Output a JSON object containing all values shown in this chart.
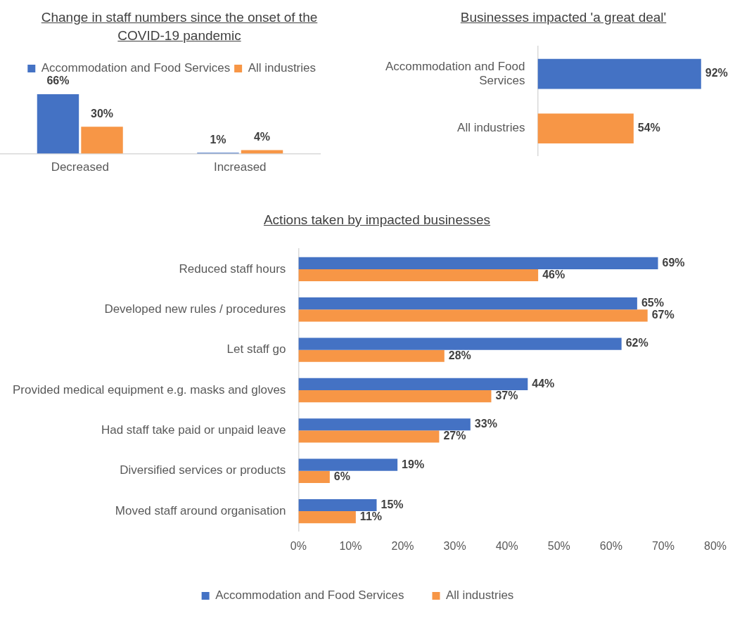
{
  "chart_data": [
    {
      "type": "bar",
      "title": "Change in staff numbers since the onset of the COVID-19 pandemic",
      "categories": [
        "Decreased",
        "Increased"
      ],
      "series": [
        {
          "name": "Accommodation and Food Services",
          "color": "#4472c4",
          "values": [
            66,
            1
          ],
          "value_labels": [
            "66%",
            "1%"
          ]
        },
        {
          "name": "All industries",
          "color": "#f79646",
          "values": [
            30,
            4
          ],
          "value_labels": [
            "30%",
            "4%"
          ]
        }
      ],
      "legend": "top right",
      "tick_labels": "x"
    },
    {
      "type": "bar",
      "title": "Businesses impacted 'a great deal'",
      "orientation": "horizontal",
      "categories": [
        "Accommodation and Food Services",
        "All industries"
      ],
      "values": [
        92,
        54
      ],
      "colors": [
        "#4472c4",
        "#f79646"
      ],
      "value_labels": [
        "92%",
        "54%"
      ],
      "tick_labels": "y"
    },
    {
      "type": "bar",
      "title": "Actions taken by impacted businesses",
      "orientation": "horizontal",
      "categories": [
        "Reduced staff hours",
        "Developed new rules / procedures",
        "Let staff go",
        "Provided medical equipment e.g. masks and gloves",
        "Had staff take paid or unpaid leave",
        "Diversified services or products",
        "Moved staff around organisation"
      ],
      "series": [
        {
          "name": "Accommodation and Food Services",
          "color": "#4472c4",
          "values": [
            69,
            65,
            62,
            44,
            33,
            19,
            15
          ],
          "value_labels": [
            "69%",
            "65%",
            "62%",
            "44%",
            "33%",
            "19%",
            "15%"
          ]
        },
        {
          "name": "All industries",
          "color": "#f79646",
          "values": [
            46,
            67,
            28,
            37,
            27,
            6,
            11
          ],
          "value_labels": [
            "46%",
            "67%",
            "28%",
            "37%",
            "27%",
            "6%",
            "11%"
          ]
        }
      ],
      "xlim": [
        0,
        80
      ],
      "xticks": [
        {
          "value": 0,
          "label": "0%"
        },
        {
          "value": 10,
          "label": "10%"
        },
        {
          "value": 20,
          "label": "20%"
        },
        {
          "value": 30,
          "label": "30%"
        },
        {
          "value": 40,
          "label": "40%"
        },
        {
          "value": 50,
          "label": "50%"
        },
        {
          "value": 60,
          "label": "60%"
        },
        {
          "value": 70,
          "label": "70%"
        },
        {
          "value": 80,
          "label": "80%"
        }
      ],
      "legend": "bottom"
    }
  ]
}
